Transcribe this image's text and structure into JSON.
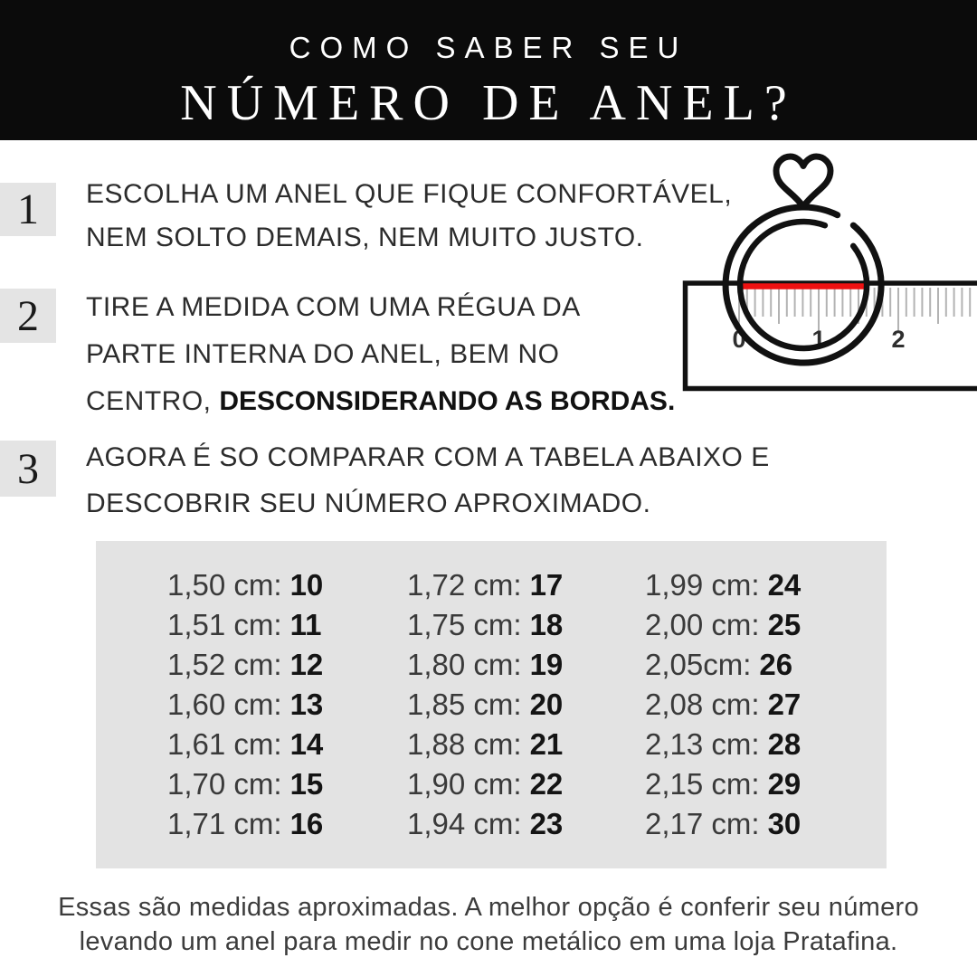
{
  "header": {
    "title_line1": "COMO SABER SEU",
    "title_line2": "NÚMERO DE ANEL?"
  },
  "steps": [
    {
      "number": "1",
      "line1": "ESCOLHA UM ANEL QUE FIQUE CONFORTÁVEL,",
      "line2": "NEM SOLTO DEMAIS, NEM MUITO JUSTO."
    },
    {
      "number": "2",
      "line1": "TIRE A MEDIDA COM UMA RÉGUA DA",
      "line2": "PARTE INTERNA DO ANEL, BEM NO",
      "line3_regular": "CENTRO, ",
      "line3_bold": "DESCONSIDERANDO AS BORDAS."
    },
    {
      "number": "3",
      "line1": "AGORA É SO COMPARAR COM A TABELA ABAIXO E",
      "line2": "DESCOBRIR SEU NÚMERO APROXIMADO."
    }
  ],
  "illustration": {
    "ruler_numbers": [
      "0",
      "1",
      "2"
    ],
    "red_line_color": "#ee1111",
    "ring_color": "#111111",
    "tick_color": "#b3b3b3"
  },
  "table": {
    "panel_color": "#e3e3e3",
    "columns": [
      {
        "rows": [
          {
            "m": "1,50 cm:",
            "s": "10"
          },
          {
            "m": "1,51 cm:",
            "s": "11"
          },
          {
            "m": "1,52 cm:",
            "s": "12"
          },
          {
            "m": "1,60 cm:",
            "s": "13"
          },
          {
            "m": "1,61 cm:",
            "s": "14"
          },
          {
            "m": "1,70 cm:",
            "s": "15"
          },
          {
            "m": "1,71 cm:",
            "s": "16"
          }
        ]
      },
      {
        "rows": [
          {
            "m": "1,72 cm:",
            "s": "17"
          },
          {
            "m": "1,75 cm:",
            "s": "18"
          },
          {
            "m": "1,80 cm:",
            "s": "19"
          },
          {
            "m": "1,85 cm:",
            "s": "20"
          },
          {
            "m": "1,88 cm:",
            "s": "21"
          },
          {
            "m": "1,90 cm:",
            "s": "22"
          },
          {
            "m": "1,94 cm:",
            "s": "23"
          }
        ]
      },
      {
        "rows": [
          {
            "m": "1,99 cm:",
            "s": "24"
          },
          {
            "m": "2,00 cm:",
            "s": "25"
          },
          {
            "m": "2,05cm:",
            "s": "26"
          },
          {
            "m": "2,08 cm:",
            "s": "27"
          },
          {
            "m": "2,13 cm:",
            "s": "28"
          },
          {
            "m": "2,15 cm:",
            "s": "29"
          },
          {
            "m": "2,17 cm:",
            "s": "30"
          }
        ]
      }
    ]
  },
  "footer": {
    "line1": "Essas são medidas aproximadas. A melhor opção é conferir seu número",
    "line2": "levando um anel para medir no cone metálico em uma loja Pratafina."
  },
  "colors": {
    "header_bg": "#0b0b0b",
    "accent_red": "#ee1111",
    "panel_gray": "#e3e3e3",
    "text_dark": "#2c2c2c"
  }
}
